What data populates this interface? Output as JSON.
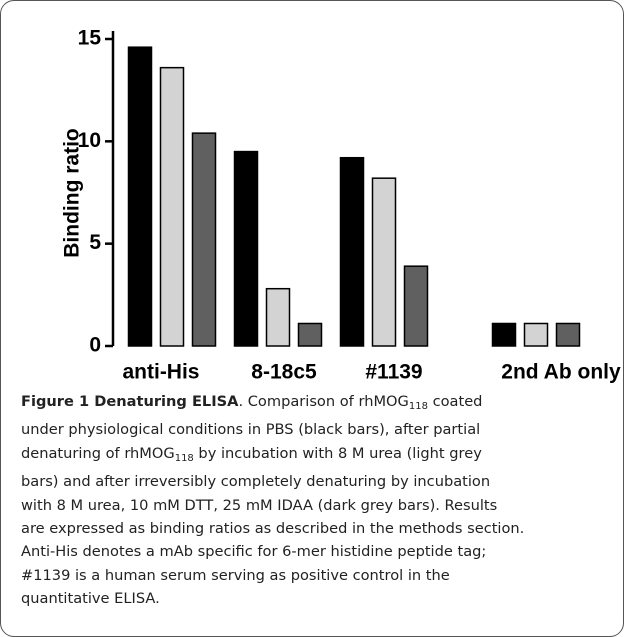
{
  "chart_data": {
    "type": "bar",
    "y_label": "Binding ratio",
    "categories": [
      "anti-His",
      "8-18c5",
      "#1139",
      "2nd Ab only"
    ],
    "series": [
      {
        "color": "#000000",
        "values": [
          14.6,
          9.5,
          9.2,
          1.1
        ]
      },
      {
        "color": "#d3d3d3",
        "values": [
          13.6,
          2.8,
          8.2,
          1.1
        ]
      },
      {
        "color": "#606060",
        "values": [
          10.4,
          1.1,
          3.9,
          1.1
        ]
      }
    ],
    "ylim": [
      0,
      15
    ],
    "yticks": [
      0,
      5,
      10,
      15
    ]
  },
  "caption": {
    "lines": [
      [
        {
          "text": "Figure 1 Denaturing ELISA",
          "style": "bold"
        },
        {
          "text": ". Comparison of rhMOG"
        },
        {
          "text": "118",
          "style": "sub"
        },
        {
          "text": " coated"
        }
      ],
      [
        {
          "text": "under physiological conditions in PBS (black bars), after partial"
        }
      ],
      [
        {
          "text": "denaturing of rhMOG"
        },
        {
          "text": "118",
          "style": "sub"
        },
        {
          "text": " by incubation with 8 M urea (light grey"
        }
      ],
      [
        {
          "text": "bars) and after irreversibly completely denaturing by incubation"
        }
      ],
      [
        {
          "text": "with 8 M urea, 10 mM DTT, 25 mM IDAA (dark grey bars). Results"
        }
      ],
      [
        {
          "text": "are expressed as binding ratios as described in the methods section."
        }
      ],
      [
        {
          "text": "Anti-His denotes a mAb specific for 6-mer histidine peptide tag;"
        }
      ],
      [
        {
          "text": "#1139 is a human serum serving as positive control in the"
        }
      ],
      [
        {
          "text": "quantitative ELISA."
        }
      ]
    ]
  }
}
